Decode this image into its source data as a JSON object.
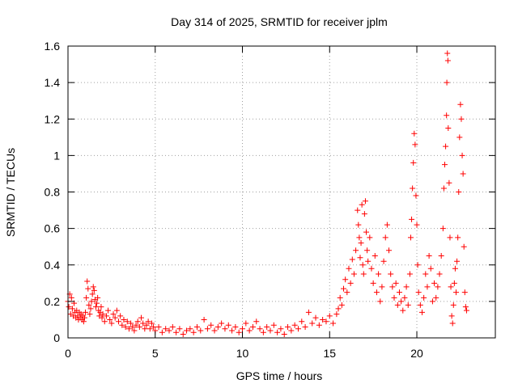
{
  "chart_data": {
    "type": "scatter",
    "title": "Day 314 of 2025, SRMTID for receiver jplm",
    "xlabel": "GPS time / hours",
    "ylabel": "SRMTID / TECUs",
    "xlim": [
      0,
      24.5
    ],
    "ylim": [
      0,
      1.6
    ],
    "xticks": [
      0,
      5,
      10,
      15,
      20
    ],
    "xtick_labels": [
      "0",
      "5",
      "10",
      "15",
      "20"
    ],
    "yticks": [
      0,
      0.2,
      0.4,
      0.6,
      0.8,
      1.0,
      1.2,
      1.4,
      1.6
    ],
    "ytick_labels": [
      "0",
      "0.2",
      "0.4",
      "0.6",
      "0.8",
      "1",
      "1.2",
      "1.4",
      "1.6"
    ],
    "grid": true,
    "marker": "+",
    "series": [
      {
        "name": "SRMTID",
        "color": "#ff0000",
        "points": [
          [
            0.0,
            0.2
          ],
          [
            0.05,
            0.17
          ],
          [
            0.1,
            0.24
          ],
          [
            0.15,
            0.13
          ],
          [
            0.2,
            0.22
          ],
          [
            0.25,
            0.16
          ],
          [
            0.3,
            0.12
          ],
          [
            0.35,
            0.19
          ],
          [
            0.4,
            0.14
          ],
          [
            0.45,
            0.11
          ],
          [
            0.5,
            0.15
          ],
          [
            0.55,
            0.12
          ],
          [
            0.6,
            0.1
          ],
          [
            0.65,
            0.14
          ],
          [
            0.7,
            0.11
          ],
          [
            0.75,
            0.13
          ],
          [
            0.8,
            0.1
          ],
          [
            0.85,
            0.12
          ],
          [
            0.9,
            0.09
          ],
          [
            0.95,
            0.11
          ],
          [
            1.0,
            0.14
          ],
          [
            1.05,
            0.22
          ],
          [
            1.1,
            0.31
          ],
          [
            1.15,
            0.27
          ],
          [
            1.2,
            0.18
          ],
          [
            1.25,
            0.13
          ],
          [
            1.3,
            0.16
          ],
          [
            1.35,
            0.2
          ],
          [
            1.4,
            0.24
          ],
          [
            1.45,
            0.28
          ],
          [
            1.5,
            0.26
          ],
          [
            1.55,
            0.21
          ],
          [
            1.6,
            0.17
          ],
          [
            1.65,
            0.19
          ],
          [
            1.7,
            0.22
          ],
          [
            1.75,
            0.15
          ],
          [
            1.8,
            0.12
          ],
          [
            1.85,
            0.14
          ],
          [
            1.9,
            0.17
          ],
          [
            1.95,
            0.11
          ],
          [
            2.0,
            0.13
          ],
          [
            2.1,
            0.09
          ],
          [
            2.2,
            0.12
          ],
          [
            2.3,
            0.15
          ],
          [
            2.4,
            0.1
          ],
          [
            2.5,
            0.08
          ],
          [
            2.6,
            0.13
          ],
          [
            2.7,
            0.11
          ],
          [
            2.8,
            0.15
          ],
          [
            2.9,
            0.09
          ],
          [
            3.0,
            0.12
          ],
          [
            3.1,
            0.07
          ],
          [
            3.2,
            0.1
          ],
          [
            3.3,
            0.06
          ],
          [
            3.4,
            0.09
          ],
          [
            3.5,
            0.05
          ],
          [
            3.6,
            0.08
          ],
          [
            3.7,
            0.06
          ],
          [
            3.8,
            0.04
          ],
          [
            3.9,
            0.07
          ],
          [
            4.0,
            0.09
          ],
          [
            4.1,
            0.06
          ],
          [
            4.2,
            0.11
          ],
          [
            4.3,
            0.08
          ],
          [
            4.4,
            0.05
          ],
          [
            4.5,
            0.07
          ],
          [
            4.6,
            0.09
          ],
          [
            4.7,
            0.05
          ],
          [
            4.8,
            0.08
          ],
          [
            4.9,
            0.06
          ],
          [
            5.0,
            0.04
          ],
          [
            5.2,
            0.06
          ],
          [
            5.4,
            0.03
          ],
          [
            5.6,
            0.05
          ],
          [
            5.8,
            0.04
          ],
          [
            6.0,
            0.06
          ],
          [
            6.2,
            0.03
          ],
          [
            6.4,
            0.05
          ],
          [
            6.6,
            0.02
          ],
          [
            6.8,
            0.04
          ],
          [
            7.0,
            0.05
          ],
          [
            7.2,
            0.03
          ],
          [
            7.4,
            0.06
          ],
          [
            7.6,
            0.04
          ],
          [
            7.8,
            0.1
          ],
          [
            8.0,
            0.05
          ],
          [
            8.2,
            0.07
          ],
          [
            8.4,
            0.04
          ],
          [
            8.6,
            0.06
          ],
          [
            8.8,
            0.08
          ],
          [
            9.0,
            0.05
          ],
          [
            9.2,
            0.07
          ],
          [
            9.4,
            0.04
          ],
          [
            9.6,
            0.06
          ],
          [
            9.8,
            0.03
          ],
          [
            10.0,
            0.05
          ],
          [
            10.2,
            0.08
          ],
          [
            10.4,
            0.04
          ],
          [
            10.6,
            0.06
          ],
          [
            10.8,
            0.09
          ],
          [
            11.0,
            0.05
          ],
          [
            11.2,
            0.03
          ],
          [
            11.4,
            0.06
          ],
          [
            11.6,
            0.04
          ],
          [
            11.8,
            0.07
          ],
          [
            12.0,
            0.03
          ],
          [
            12.2,
            0.05
          ],
          [
            12.4,
            0.02
          ],
          [
            12.6,
            0.06
          ],
          [
            12.8,
            0.04
          ],
          [
            13.0,
            0.07
          ],
          [
            13.2,
            0.05
          ],
          [
            13.4,
            0.09
          ],
          [
            13.6,
            0.06
          ],
          [
            13.8,
            0.14
          ],
          [
            14.0,
            0.08
          ],
          [
            14.2,
            0.11
          ],
          [
            14.4,
            0.07
          ],
          [
            14.6,
            0.1
          ],
          [
            14.8,
            0.09
          ],
          [
            15.0,
            0.12
          ],
          [
            15.2,
            0.08
          ],
          [
            15.4,
            0.13
          ],
          [
            15.5,
            0.16
          ],
          [
            15.6,
            0.22
          ],
          [
            15.7,
            0.18
          ],
          [
            15.8,
            0.27
          ],
          [
            15.9,
            0.32
          ],
          [
            16.0,
            0.25
          ],
          [
            16.1,
            0.38
          ],
          [
            16.2,
            0.3
          ],
          [
            16.3,
            0.43
          ],
          [
            16.4,
            0.35
          ],
          [
            16.5,
            0.48
          ],
          [
            16.6,
            0.7
          ],
          [
            16.65,
            0.62
          ],
          [
            16.7,
            0.55
          ],
          [
            16.75,
            0.44
          ],
          [
            16.8,
            0.52
          ],
          [
            16.85,
            0.73
          ],
          [
            16.9,
            0.4
          ],
          [
            16.95,
            0.35
          ],
          [
            17.0,
            0.68
          ],
          [
            17.05,
            0.75
          ],
          [
            17.1,
            0.58
          ],
          [
            17.15,
            0.48
          ],
          [
            17.2,
            0.42
          ],
          [
            17.3,
            0.55
          ],
          [
            17.4,
            0.38
          ],
          [
            17.5,
            0.3
          ],
          [
            17.6,
            0.45
          ],
          [
            17.7,
            0.25
          ],
          [
            17.8,
            0.35
          ],
          [
            17.9,
            0.2
          ],
          [
            18.0,
            0.28
          ],
          [
            18.1,
            0.42
          ],
          [
            18.2,
            0.55
          ],
          [
            18.3,
            0.62
          ],
          [
            18.4,
            0.48
          ],
          [
            18.5,
            0.35
          ],
          [
            18.6,
            0.28
          ],
          [
            18.7,
            0.22
          ],
          [
            18.8,
            0.3
          ],
          [
            18.9,
            0.18
          ],
          [
            19.0,
            0.25
          ],
          [
            19.1,
            0.2
          ],
          [
            19.2,
            0.15
          ],
          [
            19.3,
            0.22
          ],
          [
            19.4,
            0.28
          ],
          [
            19.5,
            0.18
          ],
          [
            19.6,
            0.35
          ],
          [
            19.65,
            0.55
          ],
          [
            19.7,
            0.65
          ],
          [
            19.75,
            0.82
          ],
          [
            19.8,
            0.96
          ],
          [
            19.85,
            1.12
          ],
          [
            19.9,
            1.06
          ],
          [
            19.95,
            0.78
          ],
          [
            20.0,
            0.62
          ],
          [
            20.05,
            0.4
          ],
          [
            20.1,
            0.25
          ],
          [
            20.2,
            0.18
          ],
          [
            20.3,
            0.14
          ],
          [
            20.4,
            0.22
          ],
          [
            20.5,
            0.35
          ],
          [
            20.6,
            0.28
          ],
          [
            20.7,
            0.45
          ],
          [
            20.8,
            0.38
          ],
          [
            20.9,
            0.2
          ],
          [
            21.0,
            0.3
          ],
          [
            21.1,
            0.22
          ],
          [
            21.2,
            0.28
          ],
          [
            21.3,
            0.35
          ],
          [
            21.4,
            0.45
          ],
          [
            21.5,
            0.6
          ],
          [
            21.55,
            0.82
          ],
          [
            21.6,
            0.95
          ],
          [
            21.65,
            1.05
          ],
          [
            21.7,
            1.22
          ],
          [
            21.72,
            1.4
          ],
          [
            21.75,
            1.56
          ],
          [
            21.78,
            1.52
          ],
          [
            21.8,
            1.15
          ],
          [
            21.85,
            0.85
          ],
          [
            21.9,
            0.55
          ],
          [
            21.95,
            0.28
          ],
          [
            22.0,
            0.12
          ],
          [
            22.05,
            0.08
          ],
          [
            22.1,
            0.18
          ],
          [
            22.15,
            0.3
          ],
          [
            22.2,
            0.38
          ],
          [
            22.25,
            0.25
          ],
          [
            22.3,
            0.42
          ],
          [
            22.35,
            0.55
          ],
          [
            22.4,
            0.8
          ],
          [
            22.45,
            1.1
          ],
          [
            22.5,
            1.28
          ],
          [
            22.55,
            1.2
          ],
          [
            22.6,
            1.0
          ],
          [
            22.65,
            0.9
          ],
          [
            22.7,
            0.5
          ],
          [
            22.75,
            0.25
          ],
          [
            22.8,
            0.17
          ],
          [
            22.85,
            0.15
          ]
        ]
      }
    ]
  }
}
